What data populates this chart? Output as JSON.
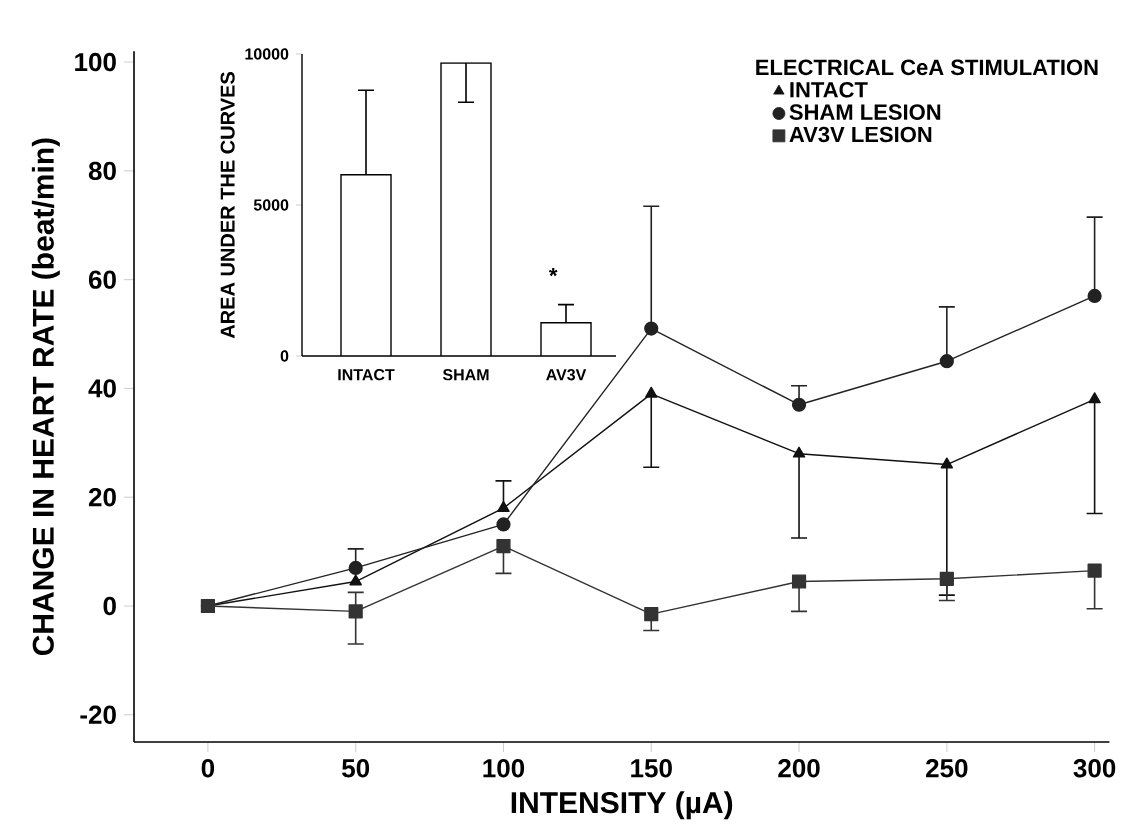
{
  "chart_data": [
    {
      "type": "line",
      "xlabel": "INTENSITY (µA)",
      "ylabel": "CHANGE IN HEART RATE (beat/min)",
      "legend_title": "ELECTRICAL CeA STIMULATION",
      "legend": "top right",
      "x": [
        0,
        50,
        100,
        150,
        200,
        250,
        300
      ],
      "xlim": [
        -25,
        305
      ],
      "ylim": [
        -25,
        102
      ],
      "xticks": [
        0,
        50,
        100,
        150,
        200,
        250,
        300
      ],
      "yticks": [
        -20,
        0,
        20,
        40,
        60,
        80,
        100
      ],
      "series": [
        {
          "name": "INTACT",
          "color": "#111111",
          "marker": "triangle",
          "values": [
            0,
            4.5,
            18,
            39,
            28,
            26,
            38
          ],
          "errors": [
            null,
            null,
            [
              18,
              23
            ],
            [
              25.5,
              39
            ],
            [
              12.5,
              28
            ],
            [
              2,
              26
            ],
            [
              17,
              38
            ]
          ]
        },
        {
          "name": "SHAM LESION",
          "color": "#222222",
          "marker": "circle",
          "values": [
            0,
            7,
            15,
            51,
            37,
            45,
            57
          ],
          "errors": [
            null,
            [
              7,
              10.5
            ],
            null,
            [
              51,
              73.5
            ],
            [
              37,
              40.5
            ],
            [
              45,
              55
            ],
            [
              57,
              71.5
            ]
          ]
        },
        {
          "name": "AV3V LESION",
          "color": "#333333",
          "marker": "square",
          "values": [
            0,
            -1,
            11,
            -1.5,
            4.5,
            5,
            6.5
          ],
          "errors": [
            null,
            [
              -7,
              2.5
            ],
            [
              6,
              11
            ],
            [
              -4.5,
              -1.5
            ],
            [
              -1,
              4.5
            ],
            [
              1,
              5
            ],
            [
              -0.5,
              6.5
            ]
          ]
        }
      ]
    },
    {
      "type": "bar",
      "ylabel": "AREA UNDER THE CURVES",
      "categories": [
        "INTACT",
        "SHAM",
        "AV3V"
      ],
      "values": [
        6000,
        9700,
        1100
      ],
      "errors": [
        [
          6000,
          8800
        ],
        [
          8400,
          9700
        ],
        [
          1100,
          1700
        ]
      ],
      "color": "#ffffff",
      "ylim": [
        0,
        10000
      ],
      "yticks": [
        0,
        5000,
        10000
      ],
      "annotations": [
        "*"
      ]
    }
  ]
}
